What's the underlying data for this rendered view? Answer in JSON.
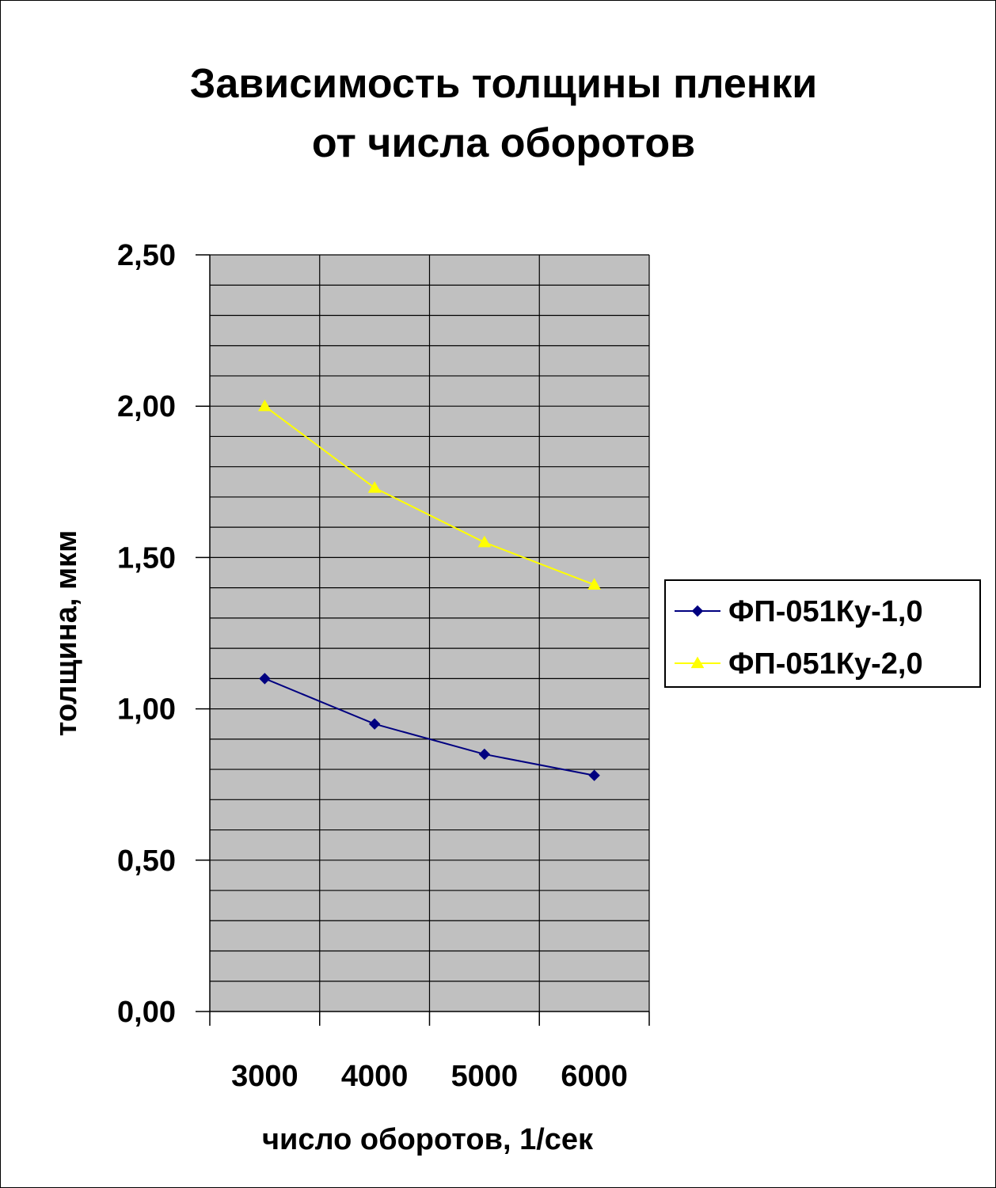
{
  "chart_data": {
    "type": "line",
    "title_lines": [
      "Зависимость толщины пленки",
      "от числа оборотов"
    ],
    "xlabel": "число оборотов, 1/сек",
    "ylabel": "толщина, мкм",
    "categories": [
      "3000",
      "4000",
      "5000",
      "6000"
    ],
    "ylim": [
      0,
      2.5
    ],
    "y_major_ticks": [
      "0,00",
      "0,50",
      "1,00",
      "1,50",
      "2,00",
      "2,50"
    ],
    "y_major_values": [
      0,
      0.5,
      1.0,
      1.5,
      2.0,
      2.5
    ],
    "y_minor_step": 0.1,
    "grid": true,
    "plot_background": "#c0c0c0",
    "legend_position": "right",
    "series": [
      {
        "name": "ФП-051Ку-1,0",
        "values": [
          1.1,
          0.95,
          0.85,
          0.78
        ],
        "color": "#000080",
        "marker": "diamond"
      },
      {
        "name": "ФП-051Ку-2,0",
        "values": [
          2.0,
          1.73,
          1.55,
          1.41
        ],
        "color": "#ffff00",
        "marker": "triangle"
      }
    ]
  }
}
